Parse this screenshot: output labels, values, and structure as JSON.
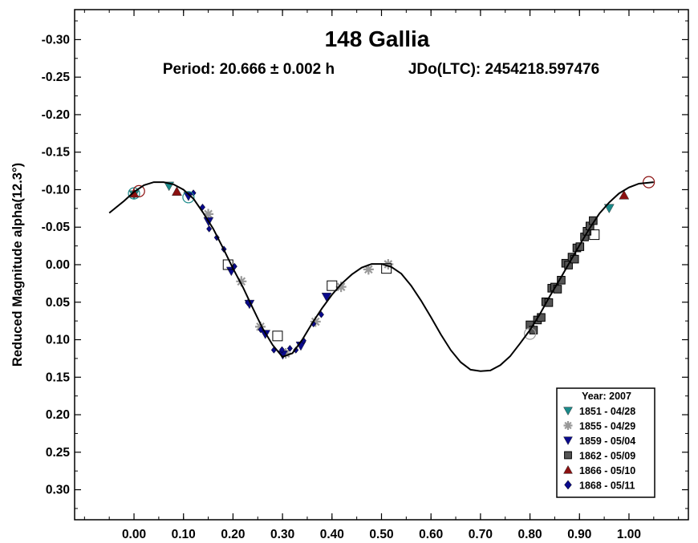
{
  "chart_data": {
    "type": "scatter",
    "title": "148 Gallia",
    "subtitle_period": "Period: 20.666 ± 0.002 h",
    "subtitle_epoch": "JDo(LTC): 2454218.597476",
    "ylabel": "Reduced Magnitude alpha(12.3°)",
    "xlabel": "",
    "xlim": [
      -0.12,
      1.12
    ],
    "ylim": [
      -0.34,
      0.34
    ],
    "y_inverted": true,
    "grid": false,
    "x_ticks": [
      0.0,
      0.1,
      0.2,
      0.3,
      0.4,
      0.5,
      0.6,
      0.7,
      0.8,
      0.9,
      1.0
    ],
    "x_tick_labels": [
      "0.00",
      "0.10",
      "0.20",
      "0.30",
      "0.40",
      "0.50",
      "0.60",
      "0.70",
      "0.80",
      "0.90",
      "1.00"
    ],
    "y_ticks": [
      -0.3,
      -0.25,
      -0.2,
      -0.15,
      -0.1,
      -0.05,
      0.0,
      0.05,
      0.1,
      0.15,
      0.2,
      0.25,
      0.3
    ],
    "y_tick_labels": [
      "-0.30",
      "-0.25",
      "-0.20",
      "-0.15",
      "-0.10",
      "-0.05",
      "0.00",
      "0.05",
      "0.10",
      "0.15",
      "0.20",
      "0.25",
      "0.30"
    ],
    "legend": {
      "title": "Year: 2007",
      "placement": "bottom-right",
      "entries": [
        {
          "label": "1851 - 04/28",
          "marker": "triangle-down",
          "color": "#1a8a8a"
        },
        {
          "label": "1855 - 04/29",
          "marker": "asterisk",
          "color": "#999999"
        },
        {
          "label": "1859 - 05/04",
          "marker": "triangle-down",
          "color": "#0a0a8c"
        },
        {
          "label": "1862 - 05/09",
          "marker": "square",
          "color": "#555555"
        },
        {
          "label": "1866 - 05/10",
          "marker": "triangle-up",
          "color": "#8b1010"
        },
        {
          "label": "1868 - 05/11",
          "marker": "diamond",
          "color": "#0a0a8c"
        }
      ]
    },
    "fit_curve": {
      "x": [
        -0.05,
        -0.02,
        0.0,
        0.02,
        0.04,
        0.06,
        0.08,
        0.1,
        0.12,
        0.14,
        0.16,
        0.18,
        0.2,
        0.22,
        0.24,
        0.26,
        0.28,
        0.3,
        0.32,
        0.34,
        0.36,
        0.38,
        0.4,
        0.42,
        0.44,
        0.46,
        0.48,
        0.5,
        0.52,
        0.54,
        0.56,
        0.58,
        0.6,
        0.62,
        0.64,
        0.66,
        0.68,
        0.7,
        0.72,
        0.74,
        0.76,
        0.78,
        0.8,
        0.82,
        0.84,
        0.86,
        0.88,
        0.9,
        0.92,
        0.94,
        0.96,
        0.98,
        1.0,
        1.02,
        1.05
      ],
      "y": [
        -0.069,
        -0.085,
        -0.097,
        -0.106,
        -0.11,
        -0.11,
        -0.107,
        -0.1,
        -0.088,
        -0.069,
        -0.048,
        -0.022,
        0.005,
        0.03,
        0.058,
        0.085,
        0.107,
        0.123,
        0.118,
        0.1,
        0.078,
        0.058,
        0.04,
        0.025,
        0.013,
        0.004,
        -0.001,
        -0.001,
        0.003,
        0.012,
        0.028,
        0.048,
        0.07,
        0.093,
        0.114,
        0.13,
        0.14,
        0.142,
        0.141,
        0.134,
        0.122,
        0.105,
        0.087,
        0.066,
        0.042,
        0.02,
        -0.003,
        -0.026,
        -0.048,
        -0.068,
        -0.083,
        -0.095,
        -0.103,
        -0.108,
        -0.11
      ]
    },
    "series": [
      {
        "name": "1851 - 04/28",
        "color": "#1a8a8a",
        "marker": "triangle-down",
        "segments": [
          [
            0.0,
            0.1,
            0.11
          ],
          [
            0.96,
            1.04,
            0.1
          ]
        ]
      },
      {
        "name": "1855 - 04/29",
        "color": "#999999",
        "marker": "asterisk",
        "segments": [
          [
            0.15,
            0.52,
            0.05
          ]
        ]
      },
      {
        "name": "1859 - 05/04",
        "color": "#0a0a8c",
        "marker": "triangle-down",
        "segments": [
          [
            0.11,
            0.39,
            0.04
          ]
        ]
      },
      {
        "name": "1862 - 05/09",
        "color": "#555555",
        "marker": "square",
        "segments": [
          [
            0.8,
            0.93,
            0.007
          ]
        ]
      },
      {
        "name": "1866 - 05/10",
        "color": "#8b1010",
        "marker": "triangle-up",
        "segments": [
          [
            0.0,
            0.1,
            0.11
          ],
          [
            0.99,
            1.05,
            0.1
          ]
        ]
      },
      {
        "name": "1868 - 05/11",
        "color": "#0a0a8c",
        "marker": "diamond",
        "segments": [
          [
            0.12,
            0.38,
            0.02
          ]
        ]
      }
    ],
    "highlighted_points": [
      {
        "x": 0.0,
        "y": -0.095,
        "marker": "circle",
        "color": "#1a8a8a"
      },
      {
        "x": 0.01,
        "y": -0.098,
        "marker": "circle",
        "color": "#8b1010"
      },
      {
        "x": 0.11,
        "y": -0.09,
        "marker": "circle",
        "color": "#1a8a8a"
      },
      {
        "x": 0.19,
        "y": 0.0,
        "marker": "square",
        "color": "#8b1010"
      },
      {
        "x": 0.29,
        "y": 0.095,
        "marker": "square",
        "color": "#0a0a8c"
      },
      {
        "x": 0.4,
        "y": 0.028,
        "marker": "square",
        "color": "#0a0a8c"
      },
      {
        "x": 0.51,
        "y": 0.005,
        "marker": "square",
        "color": "#999999"
      },
      {
        "x": 0.8,
        "y": 0.092,
        "marker": "circle",
        "color": "#999999"
      },
      {
        "x": 0.93,
        "y": -0.04,
        "marker": "square",
        "color": "#555555"
      },
      {
        "x": 1.04,
        "y": -0.11,
        "marker": "circle",
        "color": "#8b1010"
      }
    ]
  }
}
